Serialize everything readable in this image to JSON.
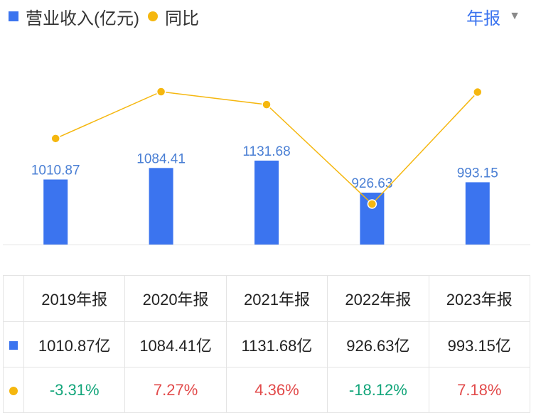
{
  "legend": {
    "series_bar": "营业收入(亿元)",
    "series_line": "同比"
  },
  "period_selector": {
    "label": "年报",
    "icon": "caret-down-icon"
  },
  "colors": {
    "bar": "#3b74ef",
    "line": "#f5b70f",
    "positive": "#e24b4b",
    "negative": "#12a57a"
  },
  "chart_data": {
    "type": "bar",
    "categories": [
      "2019年报",
      "2020年报",
      "2021年报",
      "2022年报",
      "2023年报"
    ],
    "series": [
      {
        "name": "营业收入(亿元)",
        "type": "bar",
        "values": [
          1010.87,
          1084.41,
          1131.68,
          926.63,
          993.15
        ],
        "labels": [
          "1010.87",
          "1084.41",
          "1131.68",
          "926.63",
          "993.15"
        ]
      },
      {
        "name": "同比",
        "type": "line",
        "unit": "%",
        "values": [
          -3.31,
          7.27,
          4.36,
          -18.12,
          7.18
        ]
      }
    ],
    "grid": false,
    "legend_position": "top-left"
  },
  "table": {
    "headers": [
      "2019年报",
      "2020年报",
      "2021年报",
      "2022年报",
      "2023年报"
    ],
    "revenue_row": [
      "1010.87亿",
      "1084.41亿",
      "1131.68亿",
      "926.63亿",
      "993.15亿"
    ],
    "yoy_row": [
      "-3.31%",
      "7.27%",
      "4.36%",
      "-18.12%",
      "7.18%"
    ]
  }
}
